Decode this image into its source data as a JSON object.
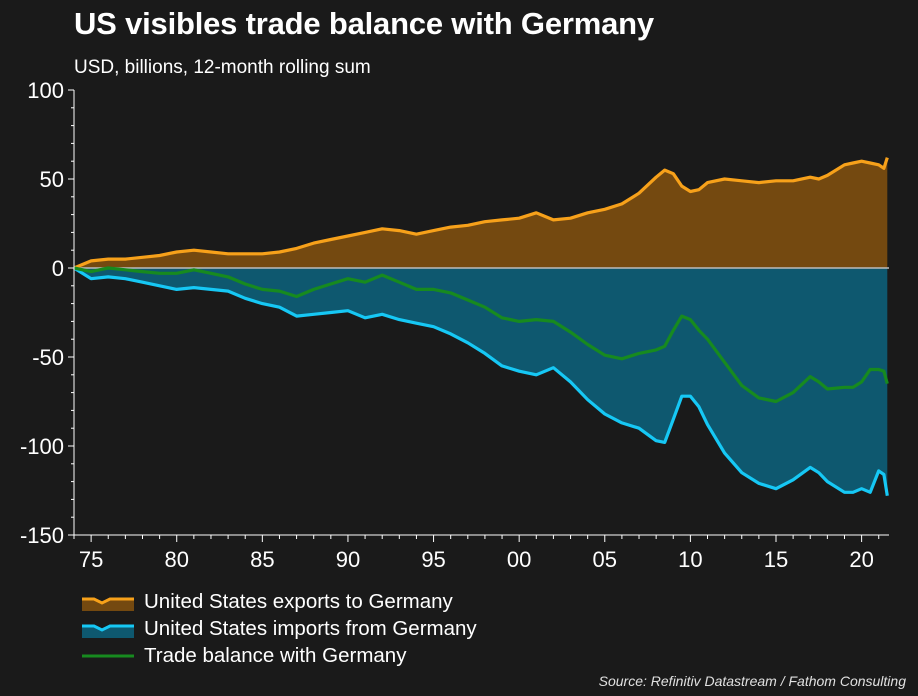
{
  "header": {
    "title": "US visibles trade balance with Germany",
    "subtitle": "USD, billions, 12-month rolling sum"
  },
  "colors": {
    "background": "#1a1a1a",
    "exports_line": "#f7a11a",
    "exports_fill": "#744910",
    "imports_line": "#16c8f5",
    "imports_fill": "#0e586f",
    "balance_line": "#178a1f",
    "zero_line": "#bcbcbc",
    "axis": "#ffffff"
  },
  "chart_data": {
    "type": "area",
    "x_unit": "year",
    "x": [
      1974,
      1975,
      1976,
      1977,
      1978,
      1979,
      1980,
      1981,
      1982,
      1983,
      1984,
      1985,
      1986,
      1987,
      1988,
      1989,
      1990,
      1991,
      1992,
      1993,
      1994,
      1995,
      1996,
      1997,
      1998,
      1999,
      2000,
      2001,
      2002,
      2003,
      2004,
      2005,
      2006,
      2007,
      2008,
      2008.5,
      2009,
      2009.5,
      2010,
      2010.5,
      2011,
      2012,
      2013,
      2014,
      2015,
      2016,
      2017,
      2017.5,
      2018,
      2019,
      2019.5,
      2020,
      2020.5,
      2021,
      2021.3,
      2021.5
    ],
    "series": [
      {
        "name": "United States exports to Germany",
        "style": "area-with-line",
        "values": [
          0,
          4,
          5,
          5,
          6,
          7,
          9,
          10,
          9,
          8,
          8,
          8,
          9,
          11,
          14,
          16,
          18,
          20,
          22,
          21,
          19,
          21,
          23,
          24,
          26,
          27,
          28,
          31,
          27,
          28,
          31,
          33,
          36,
          42,
          51,
          55,
          53,
          46,
          43,
          44,
          48,
          50,
          49,
          48,
          49,
          49,
          51,
          50,
          52,
          58,
          59,
          60,
          59,
          58,
          56,
          62
        ]
      },
      {
        "name": "United States imports from Germany",
        "style": "area-with-line",
        "values": [
          0,
          -6,
          -5,
          -6,
          -8,
          -10,
          -12,
          -11,
          -12,
          -13,
          -17,
          -20,
          -22,
          -27,
          -26,
          -25,
          -24,
          -28,
          -26,
          -29,
          -31,
          -33,
          -37,
          -42,
          -48,
          -55,
          -58,
          -60,
          -56,
          -64,
          -74,
          -82,
          -87,
          -90,
          -97,
          -98,
          -85,
          -72,
          -72,
          -78,
          -88,
          -104,
          -115,
          -121,
          -124,
          -119,
          -112,
          -115,
          -120,
          -126,
          -126,
          -124,
          -126,
          -114,
          -116,
          -128
        ]
      },
      {
        "name": "Trade balance with Germany",
        "style": "line",
        "values": [
          0,
          -2,
          0,
          -1,
          -2,
          -3,
          -3,
          -1,
          -3,
          -5,
          -9,
          -12,
          -13,
          -16,
          -12,
          -9,
          -6,
          -8,
          -4,
          -8,
          -12,
          -12,
          -14,
          -18,
          -22,
          -28,
          -30,
          -29,
          -30,
          -36,
          -43,
          -49,
          -51,
          -48,
          -46,
          -44,
          -35,
          -27,
          -29,
          -35,
          -40,
          -53,
          -66,
          -73,
          -75,
          -70,
          -61,
          -64,
          -68,
          -67,
          -67,
          -64,
          -57,
          -57,
          -58,
          -65
        ]
      }
    ],
    "xticks": [
      1975,
      1980,
      1985,
      1990,
      1995,
      2000,
      2005,
      2010,
      2015,
      2020
    ],
    "xtick_labels": [
      "75",
      "80",
      "85",
      "90",
      "95",
      "00",
      "05",
      "10",
      "15",
      "20"
    ],
    "xlim": [
      1974,
      2021.6
    ],
    "ylim": [
      -150,
      100
    ],
    "yticks": [
      100,
      50,
      0,
      -50,
      -100,
      -150
    ],
    "ytick_labels": [
      "100",
      "50",
      "0",
      "-50",
      "-100",
      "-150"
    ],
    "grid": false,
    "legend_position": "bottom-left"
  },
  "legend": {
    "items": [
      {
        "label": "United States exports to Germany"
      },
      {
        "label": "United States imports from Germany"
      },
      {
        "label": "Trade balance with Germany"
      }
    ]
  },
  "footer": {
    "source": "Source: Refinitiv Datastream / Fathom Consulting"
  }
}
